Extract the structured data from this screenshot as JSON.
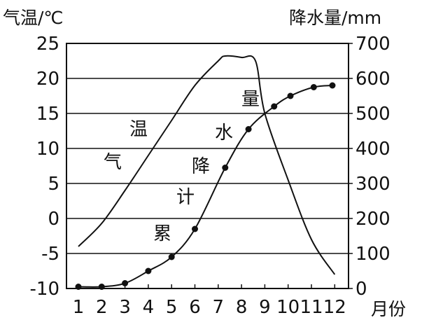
{
  "chart_data": {
    "type": "line",
    "left_axis_title": "气温/℃",
    "right_axis_title": "降水量/mm",
    "x_unit_label": "月份",
    "categories": [
      "1",
      "2",
      "3",
      "4",
      "5",
      "6",
      "7",
      "8",
      "9",
      "10",
      "11",
      "12"
    ],
    "temperature_ylim": [
      -10,
      25
    ],
    "temperature_ticks": [
      "25",
      "20",
      "15",
      "10",
      "5",
      "0",
      "-5",
      "-10"
    ],
    "precipitation_ylim": [
      0,
      700
    ],
    "precipitation_ticks": [
      "700",
      "600",
      "500",
      "400",
      "300",
      "200",
      "100",
      "0"
    ],
    "grid": "horizontal",
    "series": [
      {
        "name": "气温",
        "label_chars": [
          "温",
          "气"
        ],
        "style": "smooth-line",
        "x": [
          1,
          2,
          3,
          4,
          5,
          6,
          7,
          7.3,
          8,
          8.6,
          9,
          10,
          11,
          12
        ],
        "values": [
          -4,
          -0.7,
          4,
          9,
          14,
          19,
          22.5,
          23.2,
          23,
          22.5,
          15,
          5.5,
          -3,
          -8
        ]
      },
      {
        "name": "累计降水量",
        "label_chars": [
          "量",
          "水",
          "降",
          "计",
          "累"
        ],
        "style": "line-with-markers",
        "x": [
          1,
          2,
          3,
          4,
          5,
          6,
          7.3,
          8.3,
          9.4,
          10.1,
          11.1,
          11.9
        ],
        "values": [
          5,
          5,
          15,
          50,
          90,
          170,
          345,
          455,
          520,
          550,
          575,
          580
        ]
      }
    ]
  }
}
